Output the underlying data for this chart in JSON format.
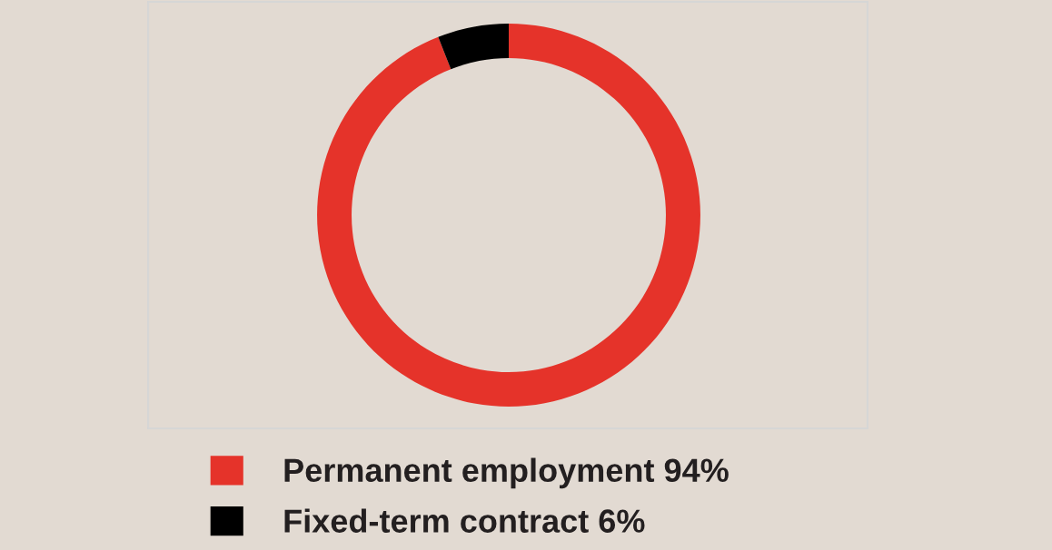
{
  "chart_data": {
    "type": "donut",
    "categories": [
      "Permanent employment 94%",
      "Fixed-term contract 6%"
    ],
    "values": [
      94,
      6
    ],
    "colors": [
      "#e5332a",
      "#000000"
    ],
    "legend": "bottom"
  }
}
